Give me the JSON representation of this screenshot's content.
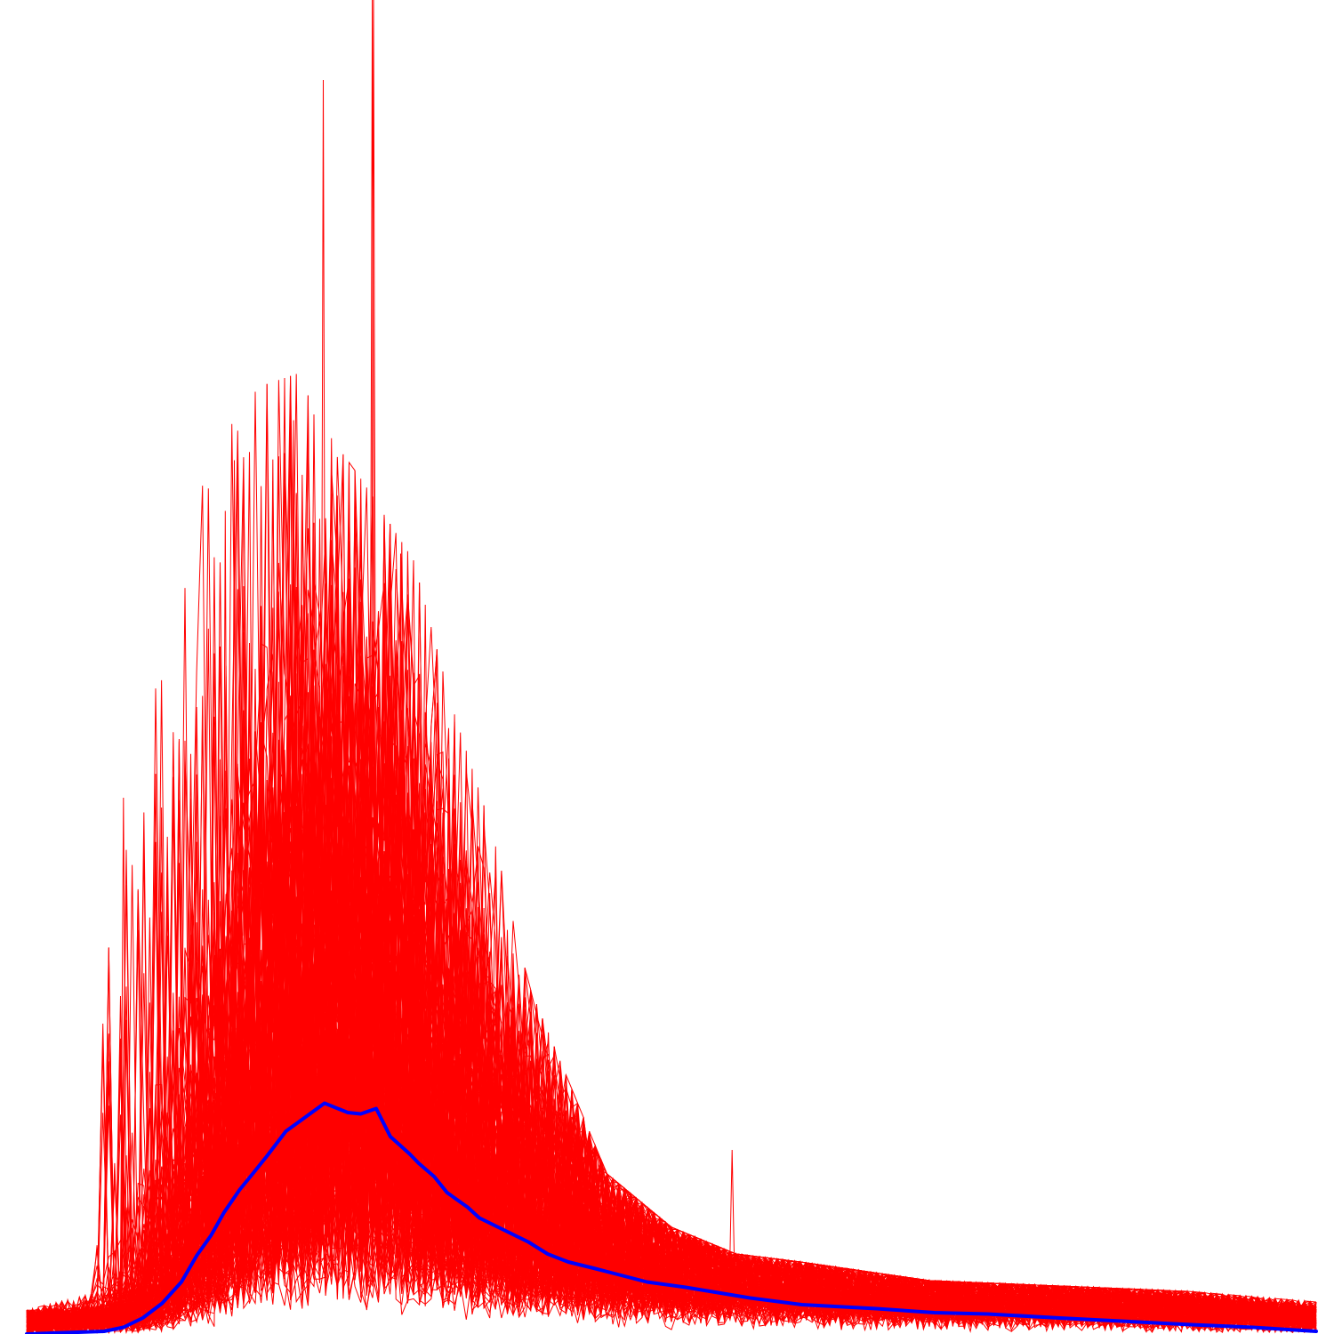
{
  "chart_data": {
    "type": "line",
    "title": "",
    "xlabel": "",
    "ylabel": "",
    "xlim": [
      0,
      100
    ],
    "ylim": [
      0,
      100
    ],
    "axes_visible": false,
    "grid": false,
    "legend": "none",
    "colors": {
      "traces": "#ff0000",
      "mean": "#0000ff",
      "background": "#ffffff"
    },
    "trace_count_estimate": 150,
    "trace_points_per_series": 220,
    "trace_envelope": {
      "description_free_values": true,
      "x": [
        0,
        5,
        6,
        8,
        10,
        13,
        15,
        18,
        21,
        23,
        26,
        30,
        33,
        36,
        39,
        42,
        45,
        50,
        55,
        60,
        70,
        80,
        90,
        100
      ],
      "upper": [
        1.8,
        3,
        40,
        52,
        58,
        62,
        67,
        71,
        72,
        68,
        64,
        58,
        47,
        38,
        26,
        19,
        12,
        8,
        6,
        5.4,
        4,
        3.6,
        3.2,
        2.4
      ]
    },
    "notable_spikes": [
      {
        "x": 23.0,
        "y": 94.0
      },
      {
        "x": 26.8,
        "y": 100.0
      },
      {
        "x": 26.9,
        "y": 100.0
      },
      {
        "x": 20.7,
        "y": 68.5
      },
      {
        "x": 16.1,
        "y": 65.5
      },
      {
        "x": 15.4,
        "y": 61.7
      },
      {
        "x": 29.0,
        "y": 58.5
      },
      {
        "x": 7.5,
        "y": 40.2
      },
      {
        "x": 54.7,
        "y": 13.8
      }
    ],
    "series": [
      {
        "name": "",
        "color": "#0000ff",
        "x": [
          0,
          6,
          7.5,
          9,
          10.5,
          12,
          13.2,
          14.3,
          15.3,
          16.5,
          17.6,
          18.6,
          20.1,
          21.1,
          23.1,
          24.9,
          25.9,
          27.1,
          28.2,
          29.7,
          30.4,
          31.6,
          32.6,
          34.2,
          35.1,
          37.0,
          38.9,
          40.4,
          42.0,
          44.1,
          45.3,
          48.1,
          51.1,
          56.1,
          60.1,
          65.9,
          70.4,
          74.5,
          80.1,
          84.2,
          90.3,
          95.1,
          100
        ],
        "y": [
          0,
          0.2,
          0.5,
          1.2,
          2.3,
          3.9,
          5.9,
          7.4,
          9.1,
          10.8,
          12.1,
          13.3,
          15.2,
          15.9,
          17.3,
          16.6,
          16.5,
          16.9,
          14.8,
          13.5,
          12.8,
          11.8,
          10.6,
          9.5,
          8.7,
          7.8,
          6.9,
          6.0,
          5.4,
          4.9,
          4.6,
          3.9,
          3.5,
          2.7,
          2.2,
          1.9,
          1.6,
          1.5,
          1.2,
          1.0,
          0.7,
          0.5,
          0.2
        ]
      }
    ]
  }
}
